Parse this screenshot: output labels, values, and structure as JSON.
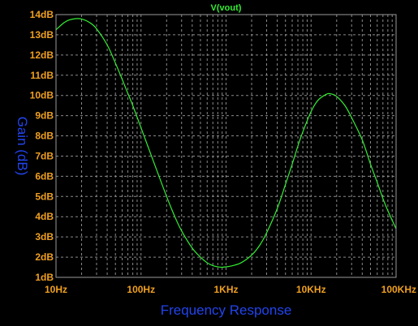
{
  "chart_data": {
    "type": "line",
    "title": "V(vout)",
    "xlabel": "Frequency Response",
    "ylabel": "Gain (dB)",
    "x_scale": "log",
    "xlim": [
      10,
      100000
    ],
    "ylim": [
      1,
      14
    ],
    "x_ticks": [
      {
        "value": 10,
        "label": "10Hz"
      },
      {
        "value": 100,
        "label": "100Hz"
      },
      {
        "value": 1000,
        "label": "1KHz"
      },
      {
        "value": 10000,
        "label": "10KHz"
      },
      {
        "value": 100000,
        "label": "100KHz"
      }
    ],
    "y_ticks": [
      {
        "value": 1,
        "label": "1dB"
      },
      {
        "value": 2,
        "label": "2dB"
      },
      {
        "value": 3,
        "label": "3dB"
      },
      {
        "value": 4,
        "label": "4dB"
      },
      {
        "value": 5,
        "label": "5dB"
      },
      {
        "value": 6,
        "label": "6dB"
      },
      {
        "value": 7,
        "label": "7dB"
      },
      {
        "value": 8,
        "label": "8dB"
      },
      {
        "value": 9,
        "label": "9dB"
      },
      {
        "value": 10,
        "label": "10dB"
      },
      {
        "value": 11,
        "label": "11dB"
      },
      {
        "value": 12,
        "label": "12dB"
      },
      {
        "value": 13,
        "label": "13dB"
      },
      {
        "value": 14,
        "label": "14dB"
      }
    ],
    "grid": true,
    "series": [
      {
        "name": "V(vout)",
        "color": "#33ee33",
        "x": [
          10,
          12,
          14,
          17,
          20,
          25,
          30,
          40,
          50,
          60,
          70,
          80,
          100,
          120,
          150,
          200,
          250,
          300,
          400,
          500,
          600,
          700,
          800,
          900,
          1000,
          1200,
          1500,
          2000,
          2500,
          3000,
          4000,
          5000,
          6000,
          7000,
          8000,
          10000,
          12000,
          15000,
          17000,
          20000,
          25000,
          30000,
          40000,
          50000,
          60000,
          70000,
          80000,
          100000
        ],
        "y": [
          13.25,
          13.55,
          13.72,
          13.8,
          13.78,
          13.6,
          13.3,
          12.5,
          11.6,
          10.8,
          10.1,
          9.5,
          8.4,
          7.5,
          6.4,
          5.0,
          4.0,
          3.3,
          2.45,
          2.0,
          1.72,
          1.58,
          1.52,
          1.5,
          1.52,
          1.58,
          1.72,
          2.1,
          2.6,
          3.2,
          4.4,
          5.6,
          6.6,
          7.5,
          8.2,
          9.2,
          9.75,
          10.05,
          10.08,
          9.95,
          9.5,
          8.9,
          7.8,
          6.6,
          5.7,
          4.9,
          4.3,
          3.4
        ]
      }
    ]
  },
  "colors": {
    "background": "#000000",
    "grid": "#8a8a8a",
    "border": "#9a9a9a",
    "tick_label": "#f0a020",
    "title": "#33ee33",
    "axis_label": "#2244ee"
  }
}
